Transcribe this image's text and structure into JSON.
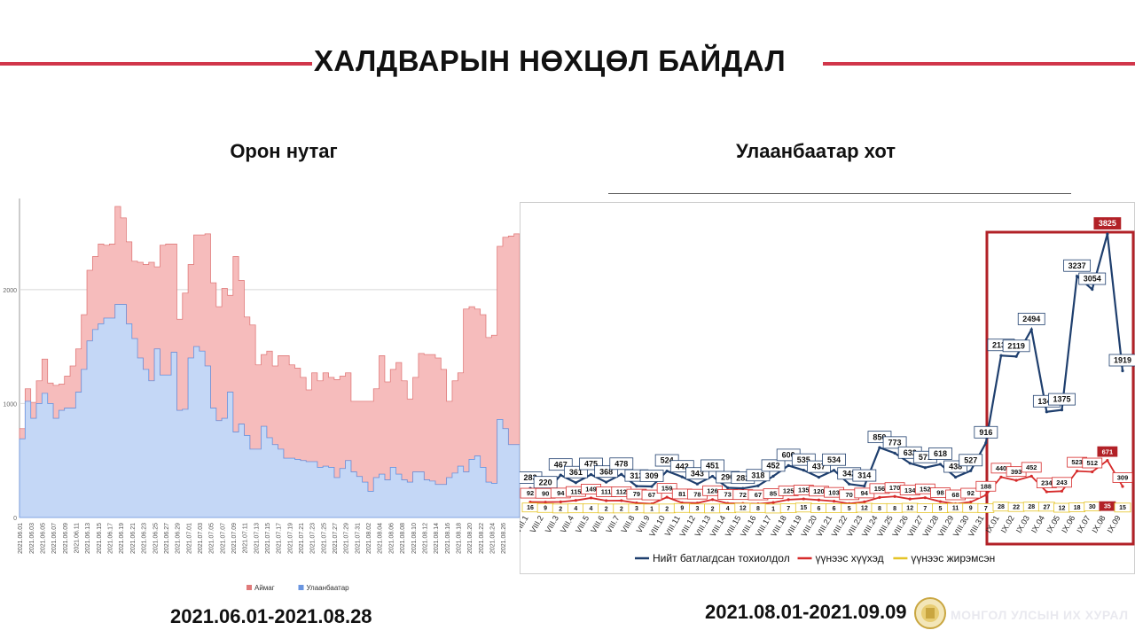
{
  "title": "ХАЛДВАРЫН НӨХЦӨЛ БАЙДАЛ",
  "left_subtitle": "Орон нутаг",
  "right_subtitle": "Улаанбаатар хот",
  "left_date_range": "2021.06.01-2021.08.28",
  "right_date_range": "2021.08.01-2021.09.09",
  "footer": {
    "text": "МОНГОЛ УЛСЫН ИХ ХУРАЛ"
  },
  "colors": {
    "accent_red": "#d1364a",
    "aimag": "#f6bcbc",
    "ub": "#c4d7f6",
    "total_line": "#1f3f6e",
    "children_line": "#d62b2b",
    "pregnant_line": "#e5c427",
    "highlight_box": "#b22127"
  },
  "chart_data": [
    {
      "type": "area",
      "stacked": true,
      "yticks": [
        0,
        1000,
        2000
      ],
      "ylim": [
        0,
        2800
      ],
      "grid": true,
      "legend_position": "bottom-right",
      "x": [
        "2021.06.01",
        "2021.06.02",
        "2021.06.03",
        "2021.06.04",
        "2021.06.05",
        "2021.06.06",
        "2021.06.07",
        "2021.06.08",
        "2021.06.09",
        "2021.06.10",
        "2021.06.11",
        "2021.06.12",
        "2021.06.13",
        "2021.06.14",
        "2021.06.15",
        "2021.06.16",
        "2021.06.17",
        "2021.06.18",
        "2021.06.19",
        "2021.06.20",
        "2021.06.21",
        "2021.06.22",
        "2021.06.23",
        "2021.06.24",
        "2021.06.25",
        "2021.06.26",
        "2021.06.27",
        "2021.06.28",
        "2021.06.29",
        "2021.06.30",
        "2021.07.01",
        "2021.07.02",
        "2021.07.03",
        "2021.07.04",
        "2021.07.05",
        "2021.07.06",
        "2021.07.07",
        "2021.07.08",
        "2021.07.09",
        "2021.07.10",
        "2021.07.11",
        "2021.07.12",
        "2021.07.13",
        "2021.07.14",
        "2021.07.15",
        "2021.07.16",
        "2021.07.17",
        "2021.07.18",
        "2021.07.19",
        "2021.07.20",
        "2021.07.21",
        "2021.07.22",
        "2021.07.23",
        "2021.07.24",
        "2021.07.25",
        "2021.07.26",
        "2021.07.27",
        "2021.07.28",
        "2021.07.29",
        "2021.07.30",
        "2021.07.31",
        "2021.08.01",
        "2021.08.02",
        "2021.08.03",
        "2021.08.04",
        "2021.08.05",
        "2021.08.06",
        "2021.08.07",
        "2021.08.08",
        "2021.08.09",
        "2021.08.10",
        "2021.08.11",
        "2021.08.12",
        "2021.08.13",
        "2021.08.14",
        "2021.08.15",
        "2021.08.16",
        "2021.08.17",
        "2021.08.18",
        "2021.08.19",
        "2021.08.20",
        "2021.08.21",
        "2021.08.22",
        "2021.08.23",
        "2021.08.24",
        "2021.08.25",
        "2021.08.26",
        "2021.08.27",
        "2021.08.28"
      ],
      "xticks": [
        "2021.06.01",
        "2021.06.03",
        "2021.06.05",
        "2021.06.07",
        "2021.06.09",
        "2021.06.11",
        "2021.06.13",
        "2021.06.15",
        "2021.06.17",
        "2021.06.19",
        "2021.06.21",
        "2021.06.23",
        "2021.06.25",
        "2021.06.27",
        "2021.06.29",
        "2021.07.01",
        "2021.07.03",
        "2021.07.05",
        "2021.07.07",
        "2021.07.09",
        "2021.07.11",
        "2021.07.13",
        "2021.07.15",
        "2021.07.17",
        "2021.07.19",
        "2021.07.21",
        "2021.07.23",
        "2021.07.25",
        "2021.07.27",
        "2021.07.29",
        "2021.07.31",
        "2021.08.02",
        "2021.08.04",
        "2021.08.06",
        "2021.08.08",
        "2021.08.10",
        "2021.08.12",
        "2021.08.14",
        "2021.08.16",
        "2021.08.18",
        "2021.08.20",
        "2021.08.22",
        "2021.08.24",
        "2021.08.26"
      ],
      "series": [
        {
          "name": "Улаанбаатар",
          "color": "#c4d7f6",
          "line": "#6a95e0",
          "values": [
            690,
            1020,
            870,
            1000,
            1090,
            1000,
            870,
            940,
            960,
            960,
            1100,
            1300,
            1550,
            1650,
            1700,
            1750,
            1750,
            1870,
            1870,
            1700,
            1570,
            1400,
            1300,
            1200,
            1480,
            1250,
            1250,
            1450,
            940,
            950,
            1400,
            1500,
            1460,
            1330,
            960,
            850,
            870,
            1100,
            750,
            820,
            720,
            600,
            600,
            800,
            700,
            640,
            600,
            520,
            520,
            510,
            500,
            490,
            490,
            440,
            450,
            440,
            350,
            430,
            500,
            400,
            360,
            310,
            230,
            350,
            380,
            330,
            440,
            380,
            330,
            310,
            400,
            400,
            330,
            320,
            290,
            290,
            350,
            390,
            450,
            400,
            510,
            540,
            440,
            310,
            300,
            860,
            780,
            640,
            640
          ]
        },
        {
          "name": "Аймаг",
          "color": "#f6bcbc",
          "line": "#e07a7a",
          "values": [
            90,
            110,
            140,
            200,
            300,
            180,
            290,
            230,
            280,
            370,
            380,
            480,
            620,
            640,
            700,
            640,
            650,
            860,
            760,
            720,
            680,
            840,
            920,
            1040,
            720,
            1140,
            1150,
            950,
            800,
            1020,
            820,
            980,
            1020,
            1160,
            1100,
            1000,
            1140,
            850,
            1540,
            1260,
            1040,
            1090,
            740,
            630,
            760,
            690,
            820,
            900,
            820,
            800,
            730,
            630,
            780,
            760,
            820,
            790,
            860,
            810,
            770,
            620,
            660,
            710,
            790,
            780,
            1040,
            860,
            860,
            980,
            870,
            730,
            830,
            1040,
            1100,
            1110,
            1110,
            1010,
            670,
            810,
            820,
            1430,
            1340,
            1290,
            1340,
            1270,
            1300,
            1520,
            1680,
            1830,
            1850
          ]
        }
      ]
    },
    {
      "type": "line",
      "categories": [
        "VIII.1",
        "VIII.2",
        "VIII.3",
        "VIII.4",
        "VIII.5",
        "VIII.6",
        "VIII.7",
        "VIII.8",
        "VIII.9",
        "VIII.10",
        "VIII.11",
        "VIII.12",
        "VIII.13",
        "VIII.14",
        "VIII.15",
        "VIII.16",
        "VIII.17",
        "VIII.18",
        "VIII.19",
        "VIII.20",
        "VIII.21",
        "VIII.22",
        "VIII.23",
        "VIII.24",
        "VIII.25",
        "VIII.26",
        "VIII.27",
        "VIII.28",
        "VIII.29",
        "VIII.30",
        "VIII.31",
        "IX.01",
        "IX.02",
        "IX.03",
        "IX.04",
        "IX.05",
        "IX.06",
        "IX.07",
        "IX.08",
        "IX.09"
      ],
      "series": [
        {
          "name": "Нийт батлагдсан тохиолдол",
          "color": "#1f3f6e",
          "values": [
            283,
            220,
            467,
            361,
            475,
            368,
            478,
            313,
            309,
            524,
            442,
            343,
            451,
            290,
            282,
            318,
            452,
            600,
            535,
            437,
            534,
            342,
            314,
            850,
            773,
            632,
            571,
            618,
            438,
            527,
            916,
            2132,
            2119,
            2494,
            1348,
            1375,
            3237,
            3054,
            3825,
            1919
          ]
        },
        {
          "name": "үүнээс хүүхэд",
          "color": "#d62b2b",
          "values": [
            92,
            90,
            94,
            115,
            149,
            111,
            112,
            79,
            67,
            159,
            81,
            78,
            126,
            73,
            72,
            67,
            85,
            125,
            135,
            120,
            103,
            70,
            94,
            156,
            170,
            134,
            152,
            98,
            68,
            92,
            188,
            440,
            393,
            452,
            234,
            243,
            523,
            512,
            671,
            309
          ]
        },
        {
          "name": "үүнээс жирэмсэн",
          "color": "#e5c427",
          "values": [
            16,
            9,
            2,
            4,
            4,
            2,
            2,
            3,
            1,
            2,
            9,
            3,
            2,
            4,
            12,
            8,
            1,
            7,
            15,
            6,
            6,
            5,
            12,
            8,
            8,
            12,
            7,
            5,
            11,
            9,
            7,
            28,
            22,
            28,
            27,
            12,
            18,
            30,
            35,
            15
          ]
        }
      ],
      "highlight_start": "IX.01",
      "highlight_label": "3825"
    }
  ]
}
